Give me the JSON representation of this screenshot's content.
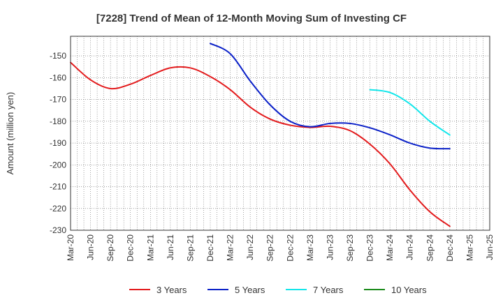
{
  "chart_data": {
    "type": "line",
    "title": "[7228]  Trend of Mean of 12-Month Moving Sum of Investing CF",
    "xlabel": "",
    "ylabel": "Amount (million yen)",
    "ylim": [
      -230,
      -141
    ],
    "yticks": [
      -150,
      -160,
      -170,
      -180,
      -190,
      -200,
      -210,
      -220,
      -230
    ],
    "categories": [
      "Mar-20",
      "Jun-20",
      "Sep-20",
      "Dec-20",
      "Mar-21",
      "Jun-21",
      "Sep-21",
      "Dec-21",
      "Mar-22",
      "Jun-22",
      "Sep-22",
      "Dec-22",
      "Mar-23",
      "Jun-23",
      "Sep-23",
      "Dec-23",
      "Mar-24",
      "Jun-24",
      "Sep-24",
      "Dec-24",
      "Mar-25",
      "Jun-25"
    ],
    "grid": true,
    "legend_position": "bottom",
    "series": [
      {
        "name": "3 Years",
        "color": "#e31a1c",
        "values": [
          -153,
          -161,
          -165,
          -163,
          -159,
          -155.5,
          -155.5,
          -159.5,
          -165.5,
          -173.5,
          -179,
          -181.8,
          -182.8,
          -182.3,
          -184.3,
          -190.5,
          -199.5,
          -211.5,
          -221.5,
          -228.2,
          null,
          null
        ]
      },
      {
        "name": "5 Years",
        "color": "#0a20c8",
        "values": [
          null,
          null,
          null,
          null,
          null,
          null,
          null,
          -144.3,
          -149,
          -161.5,
          -172.5,
          -180,
          -182.5,
          -181,
          -181,
          -183,
          -186.2,
          -190,
          -192.3,
          -192.6,
          null,
          null
        ]
      },
      {
        "name": "7 Years",
        "color": "#12e6ea",
        "values": [
          null,
          null,
          null,
          null,
          null,
          null,
          null,
          null,
          null,
          null,
          null,
          null,
          null,
          null,
          null,
          -165.5,
          -166.8,
          -172,
          -180,
          -186.3,
          null,
          null
        ]
      },
      {
        "name": "10 Years",
        "color": "#1a8a1a",
        "values": [
          null,
          null,
          null,
          null,
          null,
          null,
          null,
          null,
          null,
          null,
          null,
          null,
          null,
          null,
          null,
          null,
          null,
          null,
          null,
          null,
          null,
          null
        ]
      }
    ]
  }
}
